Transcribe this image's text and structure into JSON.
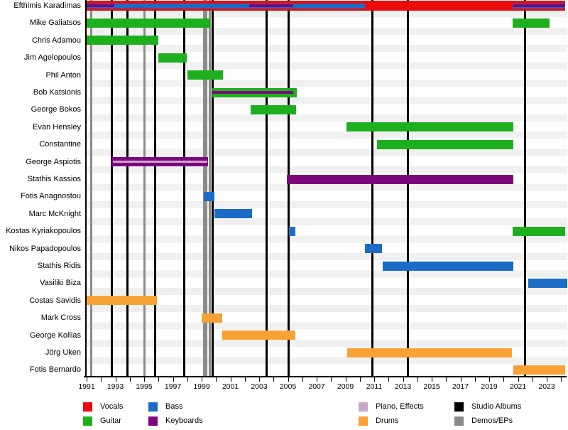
{
  "colors": {
    "vocals": "#ec0a0a",
    "guitar": "#1daf1d",
    "bass": "#1a6cc7",
    "keyboards": "#7d067d",
    "piano": "#cba6cb",
    "drums": "#f8a135",
    "studio_albums": "#000000",
    "demos_eps": "#8b8b8b"
  },
  "chart_data": {
    "type": "timeline",
    "description": "Band members timeline with instrument roles per year and release markers",
    "axis": {
      "unit": "year",
      "start": 1991,
      "end": 2024.33,
      "tick_step": 2,
      "minor_tick_step": 1,
      "tick_labels": [
        1991,
        1993,
        1995,
        1997,
        1999,
        2001,
        2003,
        2005,
        2007,
        2009,
        2011,
        2013,
        2015,
        2017,
        2019,
        2021,
        2023
      ]
    },
    "releases": {
      "studio_albums": [
        1992.77,
        1993.81,
        1995.73,
        1997.75,
        1999.72,
        2003.47,
        2005.0,
        2010.81,
        2013.27,
        2021.4
      ],
      "demos_eps": [
        1991.3,
        1995.0,
        1999.13,
        1999.32,
        1999.52
      ]
    },
    "members": [
      {
        "name": "Efthimis Karadimas",
        "bars": [
          {
            "role": "vocals",
            "start": 1991,
            "end": 2024.2,
            "size": "full"
          },
          {
            "role": "bass",
            "start": 1991,
            "end": 2010.31,
            "size": "mid"
          },
          {
            "role": "bass",
            "start": 2020.56,
            "end": 2024.2,
            "size": "mid"
          },
          {
            "role": "keyboards",
            "start": 1991,
            "end": 1992.92,
            "size": "thin"
          },
          {
            "role": "keyboards",
            "start": 2002.28,
            "end": 2005.33,
            "size": "thin"
          },
          {
            "role": "keyboards",
            "start": 2020.6,
            "end": 2024.2,
            "size": "thin"
          }
        ]
      },
      {
        "name": "Mike Galiatsos",
        "bars": [
          {
            "role": "guitar",
            "start": 1991,
            "end": 1999.57
          },
          {
            "role": "guitar",
            "start": 2020.56,
            "end": 2023.12
          }
        ]
      },
      {
        "name": "Chris Adamou",
        "bars": [
          {
            "role": "guitar",
            "start": 1991,
            "end": 1995.98
          }
        ]
      },
      {
        "name": "Jim Agelopoulos",
        "bars": [
          {
            "role": "guitar",
            "start": 1995.98,
            "end": 1997.95
          }
        ]
      },
      {
        "name": "Phil Anton",
        "bars": [
          {
            "role": "guitar",
            "start": 1998.0,
            "end": 2000.46
          }
        ]
      },
      {
        "name": "Bob Katsionis",
        "bars": [
          {
            "role": "guitar",
            "start": 1999.72,
            "end": 2005.58
          },
          {
            "role": "keyboards",
            "start": 1999.72,
            "end": 2005.33,
            "size": "thin"
          }
        ]
      },
      {
        "name": "George Bokos",
        "bars": [
          {
            "role": "guitar",
            "start": 2002.38,
            "end": 2005.53
          }
        ]
      },
      {
        "name": "Evan Hensley",
        "bars": [
          {
            "role": "guitar",
            "start": 2009.03,
            "end": 2020.61
          }
        ]
      },
      {
        "name": "Constantine",
        "bars": [
          {
            "role": "guitar",
            "start": 2011.15,
            "end": 2020.61
          }
        ]
      },
      {
        "name": "George Aspiotis",
        "bars": [
          {
            "role": "keyboards",
            "start": 1992.72,
            "end": 1999.42
          },
          {
            "role": "piano",
            "start": 1992.82,
            "end": 1999.37,
            "size": "stripe"
          }
        ]
      },
      {
        "name": "Stathis Kassios",
        "bars": [
          {
            "role": "keyboards",
            "start": 2004.89,
            "end": 2020.61
          }
        ]
      },
      {
        "name": "Fotis Anagnostou",
        "bars": [
          {
            "role": "bass",
            "start": 1999.13,
            "end": 1999.87
          }
        ]
      },
      {
        "name": "Marc McKnight",
        "bars": [
          {
            "role": "bass",
            "start": 1999.87,
            "end": 2002.48
          }
        ]
      },
      {
        "name": "Kostas Kyriakopoulos",
        "bars": [
          {
            "role": "bass",
            "start": 2005.04,
            "end": 2005.48
          },
          {
            "role": "guitar",
            "start": 2020.56,
            "end": 2024.2
          }
        ]
      },
      {
        "name": "Nikos Papadopoulos",
        "bars": [
          {
            "role": "bass",
            "start": 2010.31,
            "end": 2011.49
          }
        ]
      },
      {
        "name": "Stathis Ridis",
        "bars": [
          {
            "role": "bass",
            "start": 2011.54,
            "end": 2020.6
          }
        ]
      },
      {
        "name": "Vasiliki Biza",
        "bars": [
          {
            "role": "bass",
            "start": 2021.64,
            "end": 2024.33
          }
        ]
      },
      {
        "name": "Costas Savidis",
        "bars": [
          {
            "role": "drums",
            "start": 1991,
            "end": 1995.88
          }
        ]
      },
      {
        "name": "Mark Cross",
        "bars": [
          {
            "role": "drums",
            "start": 1998.98,
            "end": 2000.41
          }
        ]
      },
      {
        "name": "George Kollias",
        "bars": [
          {
            "role": "drums",
            "start": 2000.41,
            "end": 2005.48
          }
        ]
      },
      {
        "name": "Jörg Uken",
        "bars": [
          {
            "role": "drums",
            "start": 2009.08,
            "end": 2020.51
          }
        ]
      },
      {
        "name": "Fotis Bernardo",
        "bars": [
          {
            "role": "drums",
            "start": 2020.6,
            "end": 2024.2
          }
        ]
      }
    ]
  },
  "legend": {
    "items": [
      {
        "label": "Vocals",
        "color": "#ec0a0a"
      },
      {
        "label": "Guitar",
        "color": "#1daf1d"
      },
      {
        "label": "Bass",
        "color": "#1a6cc7"
      },
      {
        "label": "Keyboards",
        "color": "#7d067d"
      },
      {
        "label": "Piano, Effects",
        "color": "#cba6cb"
      },
      {
        "label": "Drums",
        "color": "#f8a135"
      },
      {
        "label": "Studio Albums",
        "color": "#000000"
      },
      {
        "label": "Demos/EPs",
        "color": "#8b8b8b"
      }
    ]
  }
}
